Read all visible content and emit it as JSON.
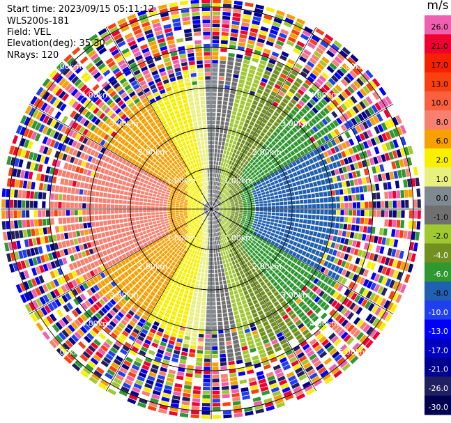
{
  "header": {
    "start_time": "Start time: 2023/09/15 05:11:12",
    "site": "WLS200s-181",
    "field": "Field: VEL",
    "elevation": "Elevation(deg): 35.30",
    "nrays": "NRays: 120"
  },
  "colorbar": {
    "unit": "m/s",
    "levels": [
      {
        "label": "26.0",
        "color": "#f060b0"
      },
      {
        "label": "21.0",
        "color": "#f00030"
      },
      {
        "label": "17.0",
        "color": "#f42000"
      },
      {
        "label": "13.0",
        "color": "#f84010"
      },
      {
        "label": "10.0",
        "color": "#f86040"
      },
      {
        "label": "8.0",
        "color": "#f88070"
      },
      {
        "label": "6.0",
        "color": "#f8a000"
      },
      {
        "label": "2.0",
        "color": "#f8f000"
      },
      {
        "label": "1.0",
        "color": "#e8f080"
      },
      {
        "label": "0.0",
        "color": "#808890"
      },
      {
        "label": "-1.0",
        "color": "#707070"
      },
      {
        "label": "-2.0",
        "color": "#a0c830"
      },
      {
        "label": "-4.0",
        "color": "#709020"
      },
      {
        "label": "-6.0",
        "color": "#309830"
      },
      {
        "label": "-8.0",
        "color": "#2060b0"
      },
      {
        "label": "-10.0",
        "color": "#2040f0"
      },
      {
        "label": "-13.0",
        "color": "#0000f8"
      },
      {
        "label": "-17.0",
        "color": "#0000c0"
      },
      {
        "label": "-21.0",
        "color": "#000090"
      },
      {
        "label": "-26.0",
        "color": "#202060"
      },
      {
        "label": "-30.0",
        "color": "#000050"
      }
    ]
  },
  "chart_data": {
    "type": "ppi",
    "field": "VEL",
    "nrays": 120,
    "range_rings_km": [
      1,
      2,
      3,
      4,
      5
    ],
    "ring_labels": [
      "1.00km",
      "2.00km",
      "3.00km",
      "4.00km",
      "5.00km"
    ],
    "max_range_km": 5.2,
    "spokes_deg": [
      0,
      30,
      60,
      90,
      120,
      150,
      180,
      210,
      240,
      270,
      300,
      330
    ],
    "vmin": -30,
    "vmax": 30
  }
}
